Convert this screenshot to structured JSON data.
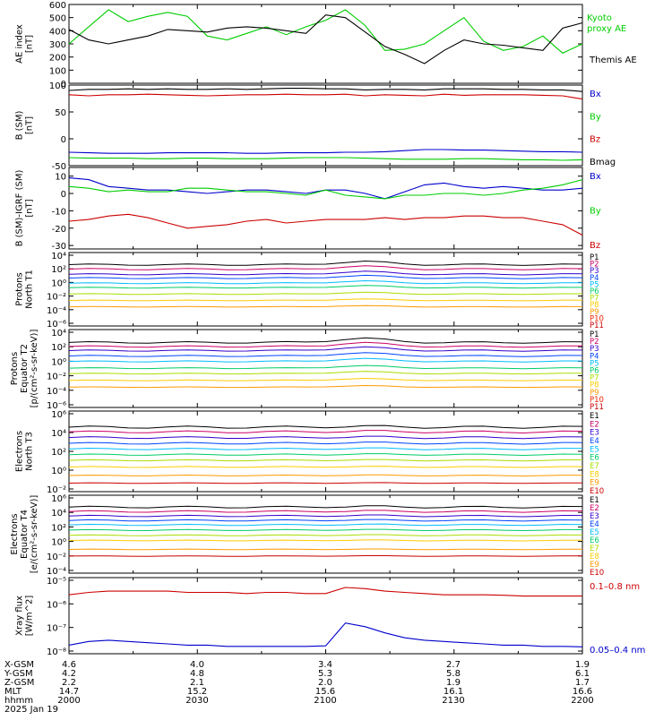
{
  "chart_data": [
    {
      "type": "line",
      "ylabel": [
        "AE index",
        "[nT]"
      ],
      "yticks": [
        "600",
        "500",
        "400",
        "300",
        "200",
        "100",
        "0"
      ],
      "ylim": [
        0,
        600
      ],
      "series": [
        {
          "name": "Kyoto proxy AE",
          "color": "#00cc00",
          "values": [
            300,
            430,
            560,
            470,
            510,
            540,
            510,
            360,
            330,
            380,
            430,
            370,
            430,
            480,
            560,
            440,
            250,
            260,
            300,
            400,
            500,
            320,
            250,
            280,
            360,
            230,
            300
          ]
        },
        {
          "name": "Themis AE",
          "color": "#000000",
          "values": [
            410,
            330,
            300,
            330,
            360,
            410,
            400,
            390,
            420,
            430,
            420,
            400,
            380,
            520,
            500,
            390,
            280,
            220,
            150,
            250,
            330,
            300,
            290,
            270,
            250,
            420,
            460
          ]
        }
      ],
      "legend": [
        "Kyoto proxy AE",
        "Themis AE"
      ],
      "legend_colors": [
        "#00cc00",
        "#000000"
      ]
    },
    {
      "type": "line",
      "ylabel": [
        "B (SM)",
        "[nT]"
      ],
      "yticks": [
        "100",
        "50",
        "0",
        "-50"
      ],
      "ylim": [
        -50,
        100
      ],
      "series": [
        {
          "name": "Bx",
          "color": "#0000cc",
          "values": [
            -25,
            -26,
            -27,
            -27,
            -27,
            -26,
            -26,
            -26,
            -26,
            -27,
            -27,
            -26,
            -26,
            -26,
            -25,
            -25,
            -24,
            -22,
            -20,
            -20,
            -21,
            -21,
            -22,
            -23,
            -24,
            -24,
            -25
          ]
        },
        {
          "name": "By",
          "color": "#00cc00",
          "values": [
            -35,
            -36,
            -36,
            -36,
            -37,
            -37,
            -36,
            -36,
            -37,
            -37,
            -37,
            -36,
            -35,
            -35,
            -35,
            -36,
            -37,
            -38,
            -38,
            -38,
            -37,
            -37,
            -38,
            -39,
            -39,
            -40,
            -39
          ]
        },
        {
          "name": "Bz",
          "color": "#cc0000",
          "values": [
            82,
            80,
            82,
            82,
            83,
            82,
            81,
            80,
            81,
            82,
            82,
            83,
            82,
            82,
            83,
            80,
            82,
            81,
            80,
            83,
            81,
            82,
            82,
            82,
            81,
            80,
            74
          ]
        },
        {
          "name": "Bmag",
          "color": "#000000",
          "values": [
            90,
            92,
            92,
            93,
            92,
            93,
            92,
            92,
            93,
            92,
            93,
            94,
            94,
            93,
            93,
            91,
            92,
            92,
            91,
            93,
            93,
            93,
            92,
            92,
            91,
            91,
            88
          ]
        }
      ],
      "legend": [
        "Bx",
        "By",
        "Bz",
        "Bmag"
      ],
      "legend_colors": [
        "#0000cc",
        "#00cc00",
        "#cc0000",
        "#000000"
      ]
    },
    {
      "type": "line",
      "ylabel": [
        "B (SM)-IGRF (SM)",
        "[nT]"
      ],
      "yticks": [
        "10",
        "0",
        "-10",
        "-20",
        "-30"
      ],
      "ylim": [
        -32,
        15
      ],
      "series": [
        {
          "name": "Bx",
          "color": "#0000cc",
          "values": [
            9,
            8,
            4,
            3,
            2,
            2,
            1,
            0,
            1,
            2,
            2,
            1,
            0,
            2,
            2,
            0,
            -3,
            1,
            5,
            6,
            4,
            3,
            4,
            3,
            2,
            2,
            3
          ]
        },
        {
          "name": "By",
          "color": "#00cc00",
          "values": [
            4,
            3,
            1,
            2,
            1,
            1,
            3,
            3,
            2,
            1,
            1,
            0,
            -1,
            2,
            -1,
            -2,
            -3,
            -1,
            -1,
            0,
            0,
            -1,
            0,
            2,
            3,
            5,
            8
          ]
        },
        {
          "name": "Bz",
          "color": "#cc0000",
          "values": [
            -16,
            -15,
            -13,
            -12,
            -14,
            -17,
            -20,
            -19,
            -18,
            -16,
            -15,
            -17,
            -16,
            -15,
            -15,
            -15,
            -14,
            -15,
            -14,
            -14,
            -13,
            -13,
            -14,
            -14,
            -16,
            -18,
            -24
          ]
        }
      ],
      "legend": [
        "Bx",
        "By",
        "Bz"
      ],
      "legend_colors": [
        "#0000cc",
        "#00cc00",
        "#cc0000"
      ]
    },
    {
      "type": "line",
      "log": true,
      "ylabel": [
        "Protons",
        "North T1"
      ],
      "yticks": [
        "10⁴",
        "10²",
        "10⁰",
        "10⁻²",
        "10⁻⁴",
        "10⁻⁶"
      ],
      "ylim_exp": [
        -7,
        4.5
      ],
      "levels": [
        2.6,
        1.9,
        1.1,
        0.5,
        -0.3,
        -1.0,
        -2.0,
        -3.0,
        -4.0
      ],
      "level_colors": [
        "#000000",
        "#cc0066",
        "#3300cc",
        "#0044ff",
        "#00bbff",
        "#00cc66",
        "#aadd00",
        "#ffcc00",
        "#ff9900"
      ],
      "hump": 0.5,
      "legend": [
        "P1",
        "P2",
        "P3",
        "P4",
        "P5",
        "P6",
        "P7",
        "P8",
        "P9",
        "P10",
        "P11"
      ],
      "legend_colors": [
        "#000000",
        "#cc0066",
        "#3300cc",
        "#0044ff",
        "#00bbff",
        "#00cc66",
        "#aadd00",
        "#ffcc00",
        "#ff9900",
        "#ee2200",
        "#cc0000"
      ]
    },
    {
      "type": "line",
      "log": true,
      "ylabel": [
        "Protons",
        "Equator T2",
        "[p/(cm²-s-sr-keV)]"
      ],
      "yticks": [
        "10⁴",
        "10²",
        "10⁰",
        "10⁻²",
        "10⁻⁴",
        "10⁻⁶"
      ],
      "ylim_exp": [
        -7,
        4.5
      ],
      "levels": [
        2.6,
        2.0,
        1.4,
        0.6,
        -0.2,
        -1.2,
        -2.0,
        -3.0,
        -4.0
      ],
      "level_colors": [
        "#000000",
        "#cc0066",
        "#3300cc",
        "#0044ff",
        "#00bbff",
        "#00cc66",
        "#aadd00",
        "#ffcc00",
        "#ff9900"
      ],
      "hump": 0.6,
      "legend": [
        "P1",
        "P2",
        "P3",
        "P4",
        "P5",
        "P6",
        "P7",
        "P8",
        "P9",
        "P10",
        "P11"
      ],
      "legend_colors": [
        "#000000",
        "#cc0066",
        "#3300cc",
        "#0044ff",
        "#00bbff",
        "#00cc66",
        "#aadd00",
        "#ffcc00",
        "#ff9900",
        "#ee2200",
        "#cc0000"
      ]
    },
    {
      "type": "line",
      "log": true,
      "ylabel": [
        "Electrons",
        "North T3"
      ],
      "yticks": [
        "10⁶",
        "10⁴",
        "10²",
        "10⁰",
        "10⁻²"
      ],
      "ylim_exp": [
        -2.5,
        6
      ],
      "levels": [
        4.3,
        3.8,
        3.2,
        2.6,
        2.0,
        1.4,
        0.8,
        0.1,
        -0.8,
        -1.6
      ],
      "level_colors": [
        "#000000",
        "#cc0066",
        "#3300cc",
        "#0044ff",
        "#00bbff",
        "#00cc66",
        "#aadd00",
        "#ffcc00",
        "#ff9900",
        "#cc0000"
      ],
      "hump": 0.1,
      "legend": [
        "E1",
        "E2",
        "E3",
        "E4",
        "E5",
        "E6",
        "E7",
        "E8",
        "E9",
        "E10"
      ],
      "legend_colors": [
        "#000000",
        "#cc0066",
        "#3300cc",
        "#0044ff",
        "#00bbff",
        "#00cc66",
        "#aadd00",
        "#ffcc00",
        "#ff9900",
        "#cc0000"
      ]
    },
    {
      "type": "line",
      "log": true,
      "ylabel": [
        "Electrons",
        "Equator T4",
        "[e/(cm²-s-sr-keV)]"
      ],
      "yticks": [
        "10⁶",
        "10⁴",
        "10²",
        "10⁰",
        "10⁻²",
        "10⁻⁴"
      ],
      "ylim_exp": [
        -4.5,
        6
      ],
      "levels": [
        4.4,
        3.8,
        3.2,
        2.6,
        2.0,
        1.3,
        0.6,
        -0.1,
        -1.3,
        -2.2
      ],
      "level_colors": [
        "#000000",
        "#cc0066",
        "#3300cc",
        "#0044ff",
        "#00bbff",
        "#00cc66",
        "#aadd00",
        "#ffcc00",
        "#ff9900",
        "#cc0000"
      ],
      "hump": 0.1,
      "legend": [
        "E1",
        "E2",
        "E3",
        "E4",
        "E5",
        "E6",
        "E7",
        "E8",
        "E9",
        "E10"
      ],
      "legend_colors": [
        "#000000",
        "#cc0066",
        "#3300cc",
        "#0044ff",
        "#00bbff",
        "#00cc66",
        "#aadd00",
        "#ffcc00",
        "#ff9900",
        "#cc0000"
      ]
    },
    {
      "type": "line",
      "log": true,
      "ylabel": [
        "Xray flux",
        "[W/m^2]"
      ],
      "yticks": [
        "10⁻⁵",
        "10⁻⁶",
        "10⁻⁷",
        "10⁻⁸"
      ],
      "ylim_exp": [
        -8.1,
        -5
      ],
      "series": [
        {
          "name": "0.1-0.8 nm",
          "color": "#cc0000",
          "values": [
            -5.7,
            -5.6,
            -5.55,
            -5.55,
            -5.55,
            -5.55,
            -5.6,
            -5.6,
            -5.6,
            -5.65,
            -5.6,
            -5.6,
            -5.65,
            -5.65,
            -5.4,
            -5.45,
            -5.55,
            -5.6,
            -5.65,
            -5.7,
            -5.7,
            -5.7,
            -5.72,
            -5.75,
            -5.75,
            -5.75,
            -5.75
          ]
        },
        {
          "name": "0.05-0.4 nm",
          "color": "#0000cc",
          "values": [
            -7.75,
            -7.6,
            -7.55,
            -7.6,
            -7.65,
            -7.7,
            -7.75,
            -7.75,
            -7.8,
            -7.8,
            -7.8,
            -7.8,
            -7.8,
            -7.78,
            -6.85,
            -7.0,
            -7.25,
            -7.45,
            -7.55,
            -7.6,
            -7.65,
            -7.7,
            -7.75,
            -7.75,
            -7.8,
            -7.8,
            -7.82
          ]
        }
      ],
      "legend": [
        "0.1–0.8 nm",
        "0.05–0.4 nm"
      ],
      "legend_colors": [
        "#cc0000",
        "#0000cc"
      ]
    }
  ],
  "footer": {
    "row_labels": [
      "X-GSM",
      "Y-GSM",
      "Z-GSM",
      "MLT",
      "hhmm",
      "2025 Jan 19"
    ],
    "columns": [
      {
        "x_gsm": "4.6",
        "y_gsm": "4.2",
        "z_gsm": "2.2",
        "mlt": "14.7",
        "hhmm": "2000"
      },
      {
        "x_gsm": "4.0",
        "y_gsm": "4.8",
        "z_gsm": "2.1",
        "mlt": "15.2",
        "hhmm": "2030"
      },
      {
        "x_gsm": "3.4",
        "y_gsm": "5.3",
        "z_gsm": "2.0",
        "mlt": "15.6",
        "hhmm": "2100"
      },
      {
        "x_gsm": "2.7",
        "y_gsm": "5.8",
        "z_gsm": "1.9",
        "mlt": "16.1",
        "hhmm": "2130"
      },
      {
        "x_gsm": "1.9",
        "y_gsm": "6.1",
        "z_gsm": "1.7",
        "mlt": "16.6",
        "hhmm": "2200"
      }
    ]
  }
}
